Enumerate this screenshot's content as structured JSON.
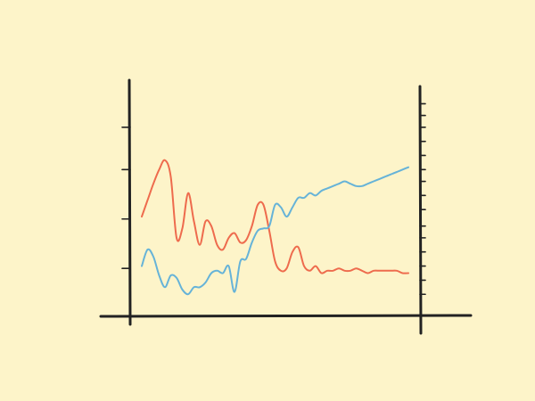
{
  "chart_data": {
    "type": "line",
    "title": "",
    "xlabel": "",
    "ylabel": "",
    "xlim": [
      0,
      100
    ],
    "ylim": [
      0,
      100
    ],
    "left_axis_ticks": [
      20,
      41,
      62,
      80
    ],
    "right_axis_ticks": [
      9,
      15,
      21,
      27,
      33,
      38,
      45,
      51,
      57,
      62,
      68,
      74,
      80,
      85,
      90
    ],
    "grid": false,
    "legend": "none",
    "x": [
      4,
      6,
      8,
      10,
      12,
      14,
      16,
      18,
      20,
      22,
      24,
      26,
      28,
      30,
      32,
      34,
      36,
      38,
      40,
      42,
      44,
      46,
      48,
      50,
      52,
      54,
      56,
      58,
      60,
      62,
      64,
      66,
      68,
      70,
      72,
      74,
      76,
      78,
      80,
      82,
      84,
      86,
      88,
      90,
      92,
      94,
      96
    ],
    "series": [
      {
        "color": "#ee6b4d",
        "values": [
          42,
          49,
          56,
          62,
          66,
          59,
          33,
          37,
          52,
          40,
          30,
          40,
          38,
          30,
          28,
          33,
          35,
          31,
          32,
          38,
          47,
          47,
          36,
          23,
          19,
          20,
          27,
          29,
          21,
          19,
          21,
          18,
          19,
          19,
          20,
          19,
          19,
          20,
          19,
          18,
          19,
          19,
          19,
          19,
          19,
          18,
          18
        ],
        "note_only_first_values_used_for_length": true
      },
      {
        "color": "#66b3d8",
        "values": [
          21,
          28,
          25,
          17,
          12,
          17,
          16,
          11,
          9,
          12,
          12,
          14,
          18,
          19,
          18,
          21,
          10,
          23,
          24,
          31,
          36,
          37,
          38,
          47,
          46,
          42,
          46,
          50,
          50,
          52,
          51,
          53,
          54,
          55,
          56,
          57,
          56,
          55,
          55,
          56,
          57,
          58,
          59,
          60,
          61,
          62,
          63
        ]
      }
    ]
  }
}
